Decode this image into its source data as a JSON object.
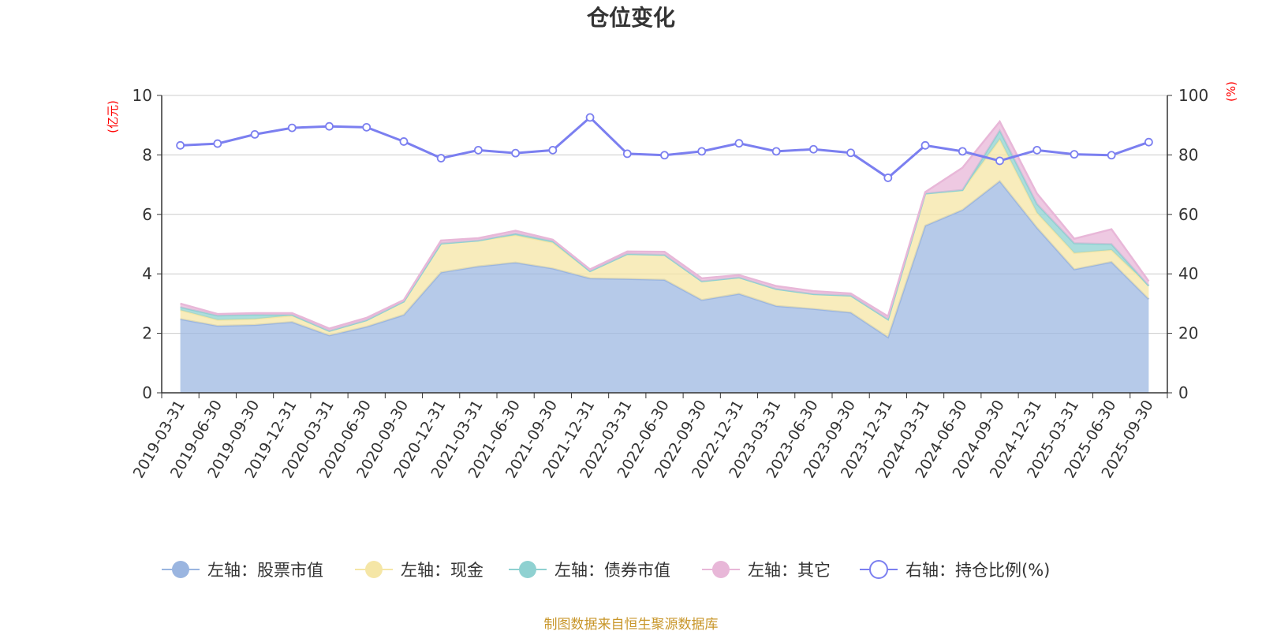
{
  "chart_data": {
    "type": "area",
    "title": "仓位变化",
    "left_axis_unit": "(亿元)",
    "right_axis_unit": "(%)",
    "left_ylim": [
      0,
      10
    ],
    "left_ticks": [
      "0",
      "2",
      "4",
      "6",
      "8",
      "10"
    ],
    "right_ylim": [
      0,
      100
    ],
    "right_ticks": [
      "0",
      "20",
      "40",
      "60",
      "80",
      "100"
    ],
    "grid": true,
    "legend_position": "bottom",
    "x": [
      "2019-03-31",
      "2019-06-30",
      "2019-09-30",
      "2019-12-31",
      "2020-03-31",
      "2020-06-30",
      "2020-09-30",
      "2020-12-31",
      "2021-03-31",
      "2021-06-30",
      "2021-09-30",
      "2021-12-31",
      "2022-03-31",
      "2022-06-30",
      "2022-09-30",
      "2022-12-31",
      "2023-03-31",
      "2023-06-30",
      "2023-09-30",
      "2023-12-31",
      "2024-03-31",
      "2024-06-30",
      "2024-09-30",
      "2024-12-31",
      "2025-03-31",
      "2025-06-30",
      "2025-09-30"
    ],
    "series": [
      {
        "name": "左轴：股票市值",
        "axis": "left",
        "stacked": true,
        "color": "#9ab5e0",
        "values": [
          2.48,
          2.25,
          2.28,
          2.38,
          1.93,
          2.22,
          2.62,
          4.05,
          4.25,
          4.38,
          4.18,
          3.85,
          3.83,
          3.8,
          3.12,
          3.33,
          2.92,
          2.82,
          2.7,
          1.87,
          5.62,
          6.15,
          7.12,
          5.55,
          4.15,
          4.4,
          3.15
        ]
      },
      {
        "name": "左轴：现金",
        "axis": "left",
        "stacked": true,
        "color": "#f5e6a6",
        "values": [
          0.3,
          0.2,
          0.2,
          0.22,
          0.15,
          0.22,
          0.45,
          0.97,
          0.87,
          0.92,
          0.87,
          0.24,
          0.84,
          0.84,
          0.63,
          0.55,
          0.57,
          0.5,
          0.57,
          0.6,
          1.08,
          0.67,
          1.4,
          0.5,
          0.55,
          0.4,
          0.45
        ]
      },
      {
        "name": "左轴：债券市值",
        "axis": "left",
        "stacked": true,
        "color": "#8fd1d1",
        "values": [
          0.1,
          0.15,
          0.15,
          0.02,
          0,
          0,
          0,
          0,
          0,
          0.05,
          0.05,
          0,
          0,
          0,
          0,
          0,
          0,
          0,
          0,
          0,
          0,
          0,
          0.3,
          0.3,
          0.33,
          0.2,
          0
        ]
      },
      {
        "name": "左轴：其它",
        "axis": "left",
        "stacked": true,
        "color": "#e8b7d8",
        "values": [
          0.12,
          0.05,
          0.05,
          0.06,
          0.08,
          0.08,
          0.05,
          0.1,
          0.08,
          0.1,
          0.05,
          0.06,
          0.08,
          0.1,
          0.1,
          0.08,
          0.1,
          0.1,
          0.07,
          0.1,
          0.05,
          0.75,
          0.3,
          0.35,
          0.15,
          0.5,
          0.15
        ]
      },
      {
        "name": "右轴：持仓比例(%)",
        "axis": "right",
        "stacked": false,
        "color": "#7b7ff0",
        "values": [
          83.2,
          83.8,
          86.9,
          89.1,
          89.6,
          89.3,
          84.5,
          78.9,
          81.6,
          80.6,
          81.6,
          92.6,
          80.4,
          79.9,
          81.2,
          83.9,
          81.2,
          81.9,
          80.7,
          72.3,
          83.2,
          81.2,
          78.0,
          81.6,
          80.2,
          79.9,
          84.3
        ]
      }
    ]
  },
  "source_note": "制图数据来自恒生聚源数据库"
}
